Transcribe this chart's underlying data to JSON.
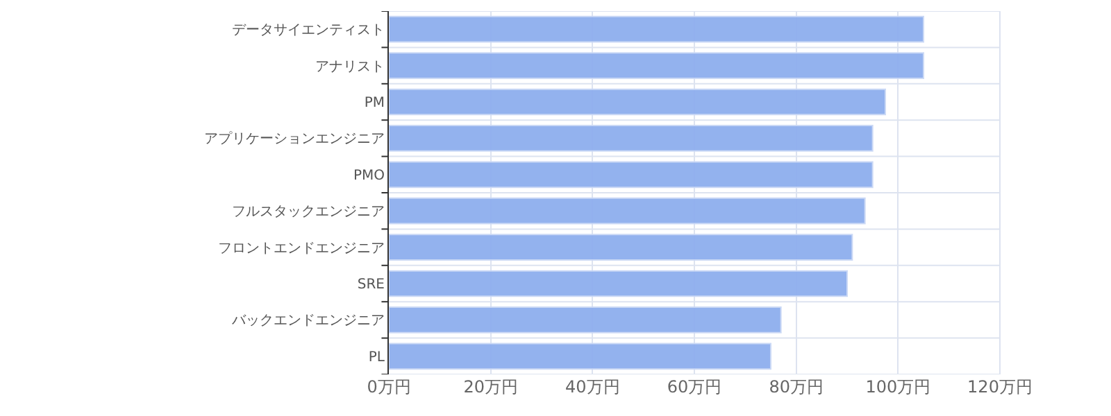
{
  "chart_data": {
    "type": "bar",
    "orientation": "horizontal",
    "categories": [
      "データサイエンティスト",
      "アナリスト",
      "PM",
      "アプリケーションエンジニア",
      "PMO",
      "フルスタックエンジニア",
      "フロントエンドエンジニア",
      "SRE",
      "バックエンドエンジニア",
      "PL"
    ],
    "values": [
      105,
      105,
      97.5,
      95,
      95,
      93.5,
      91,
      90,
      77,
      75
    ],
    "color": "#8eaeee",
    "xlim": [
      0,
      120
    ],
    "xticks": [
      {
        "value": 0,
        "label": "0万円"
      },
      {
        "value": 20,
        "label": "20万円"
      },
      {
        "value": 40,
        "label": "40万円"
      },
      {
        "value": 60,
        "label": "60万円"
      },
      {
        "value": 80,
        "label": "80万円"
      },
      {
        "value": 100,
        "label": "100万円"
      },
      {
        "value": 120,
        "label": "120万円"
      }
    ],
    "grid": true
  }
}
